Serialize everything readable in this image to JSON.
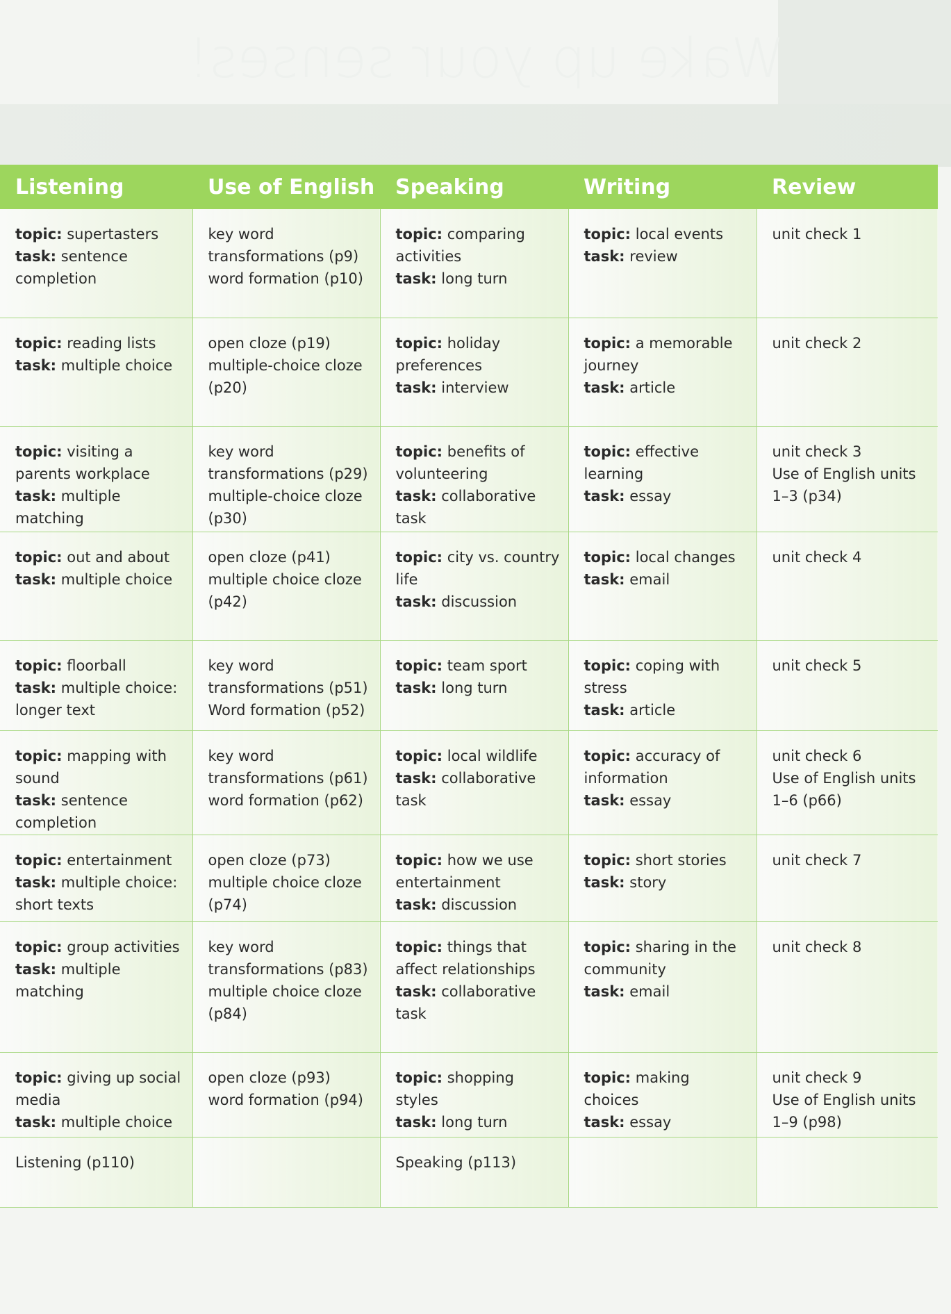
{
  "background": {
    "title": "Wake up your senses!"
  },
  "accent_color": "#9dd65d",
  "headers": [
    "Listening",
    "Use of English",
    "Speaking",
    "Writing",
    "Review"
  ],
  "rows": [
    {
      "listening": {
        "topic": "supertasters",
        "task": "sentence completion"
      },
      "use_of_english": [
        "key word transformations (p9)",
        "word formation (p10)"
      ],
      "speaking": {
        "topic": "comparing activities",
        "task": "long turn"
      },
      "writing": {
        "topic": "local events",
        "task": "review"
      },
      "review": [
        "unit check 1"
      ]
    },
    {
      "listening": {
        "topic": "reading lists",
        "task": "multiple choice"
      },
      "use_of_english": [
        "open cloze (p19)",
        "multiple-choice cloze (p20)"
      ],
      "speaking": {
        "topic": "holiday preferences",
        "task": "interview"
      },
      "writing": {
        "topic": "a memorable journey",
        "task": "article"
      },
      "review": [
        "unit check 2"
      ]
    },
    {
      "listening": {
        "topic": "visiting a parents workplace",
        "task": "multiple matching"
      },
      "use_of_english": [
        "key word transformations (p29)",
        "multiple-choice cloze (p30)"
      ],
      "speaking": {
        "topic": "benefits of volunteering",
        "task": "collaborative task"
      },
      "writing": {
        "topic": "effective learning",
        "task": "essay"
      },
      "review": [
        "unit check 3",
        "Use of English units 1–3 (p34)"
      ]
    },
    {
      "listening": {
        "topic": "out and about",
        "task": "multiple choice"
      },
      "use_of_english": [
        "open cloze (p41)",
        "multiple choice cloze (p42)"
      ],
      "speaking": {
        "topic": "city vs. country life",
        "task": "discussion"
      },
      "writing": {
        "topic": "local changes",
        "task": "email"
      },
      "review": [
        "unit check 4"
      ]
    },
    {
      "listening": {
        "topic": "floorball",
        "task": "multiple choice: longer text"
      },
      "use_of_english": [
        "key word transformations (p51)",
        "Word formation (p52)"
      ],
      "speaking": {
        "topic": "team sport",
        "task": "long turn"
      },
      "writing": {
        "topic": "coping with stress",
        "task": "article"
      },
      "review": [
        "unit check 5"
      ]
    },
    {
      "listening": {
        "topic": "mapping with sound",
        "task": "sentence completion"
      },
      "use_of_english": [
        "key word transformations (p61)",
        "word formation (p62)"
      ],
      "speaking": {
        "topic": "local wildlife",
        "task": "collaborative task"
      },
      "writing": {
        "topic": "accuracy of information",
        "task": "essay"
      },
      "review": [
        "unit check 6",
        "Use of English units 1–6 (p66)"
      ]
    },
    {
      "listening": {
        "topic": "entertainment",
        "task": "multiple choice: short texts"
      },
      "use_of_english": [
        "open cloze (p73)",
        "multiple choice cloze (p74)"
      ],
      "speaking": {
        "topic": "how we use entertainment",
        "task": "discussion"
      },
      "writing": {
        "topic": "short stories",
        "task": "story"
      },
      "review": [
        "unit check 7"
      ]
    },
    {
      "listening": {
        "topic": "group activities",
        "task": "multiple matching"
      },
      "use_of_english": [
        "key word transformations (p83)",
        "multiple choice cloze (p84)"
      ],
      "speaking": {
        "topic": "things that affect relationships",
        "task": "collaborative task"
      },
      "writing": {
        "topic": "sharing in the community",
        "task": "email"
      },
      "review": [
        "unit check 8"
      ]
    },
    {
      "listening": {
        "topic": "giving up social media",
        "task": "multiple choice"
      },
      "use_of_english": [
        "open cloze (p93)",
        "word formation (p94)"
      ],
      "speaking": {
        "topic": "shopping styles",
        "task": "long turn"
      },
      "writing": {
        "topic": "making choices",
        "task": "essay"
      },
      "review": [
        "unit check 9",
        "Use of English units 1–9 (p98)"
      ]
    },
    {
      "listening": {
        "plain": "Listening (p110)"
      },
      "use_of_english": [],
      "speaking": {
        "plain": "Speaking (p113)"
      },
      "writing": {},
      "review": []
    }
  ],
  "labels": {
    "topic": "topic:",
    "task": "task:"
  }
}
